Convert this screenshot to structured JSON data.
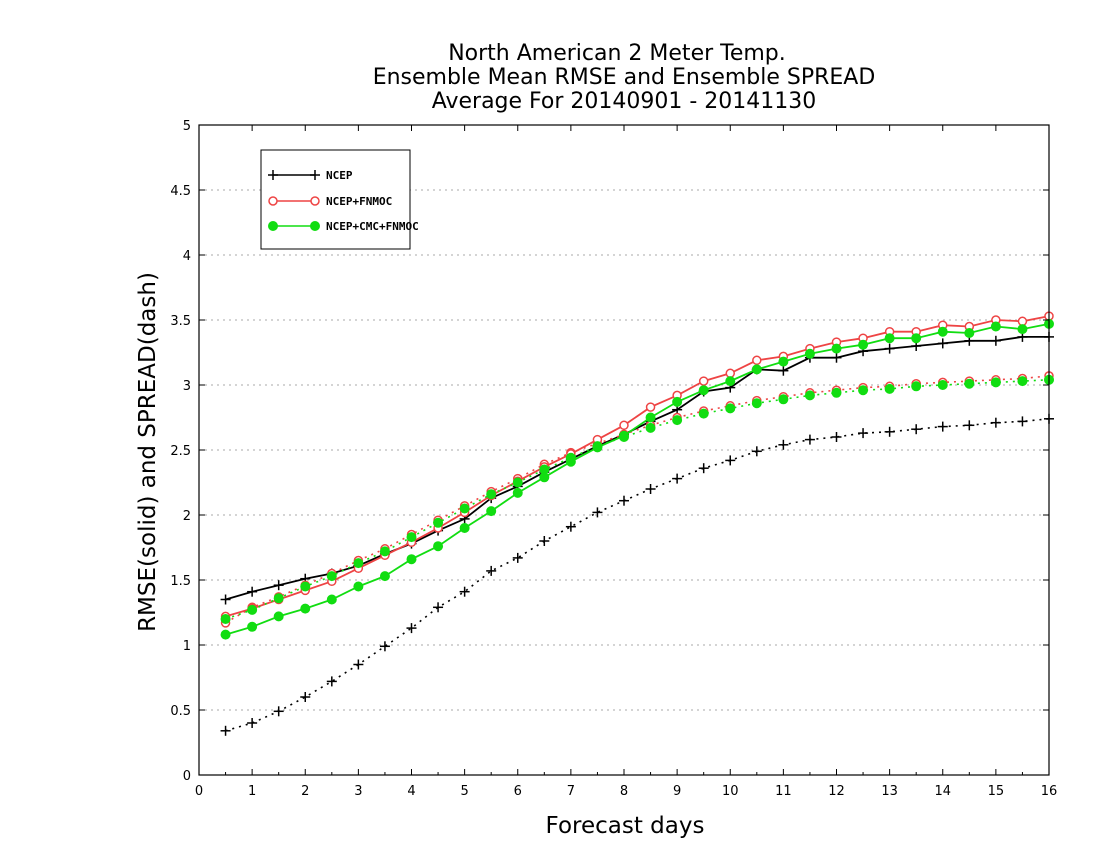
{
  "chart_data": {
    "type": "line",
    "title": [
      "North American 2 Meter Temp.",
      "Ensemble Mean RMSE and Ensemble SPREAD",
      "Average For 20140901 - 20141130"
    ],
    "xlabel": "Forecast days",
    "ylabel": "RMSE(solid) and SPREAD(dash)",
    "xlim": [
      0,
      16
    ],
    "ylim": [
      0,
      5
    ],
    "xticks": [
      0,
      1,
      2,
      3,
      4,
      5,
      6,
      7,
      8,
      9,
      10,
      11,
      12,
      13,
      14,
      15,
      16
    ],
    "yticks": [
      0,
      0.5,
      1,
      1.5,
      2,
      2.5,
      3,
      3.5,
      4,
      4.5,
      5
    ],
    "ytick_labels": [
      "0",
      "0.5",
      "1",
      "1.5",
      "2",
      "2.5",
      "3",
      "3.5",
      "4",
      "4.5",
      "5"
    ],
    "grid": "horizontal-dotted",
    "legend_position": "top-left",
    "x": [
      0.5,
      1,
      1.5,
      2,
      2.5,
      3,
      3.5,
      4,
      4.5,
      5,
      5.5,
      6,
      6.5,
      7,
      7.5,
      8,
      8.5,
      9,
      9.5,
      10,
      10.5,
      11,
      11.5,
      12,
      12.5,
      13,
      13.5,
      14,
      14.5,
      15,
      15.5,
      16
    ],
    "series": [
      {
        "name": "NCEP",
        "color": "#000000",
        "marker": "plus",
        "rmse": [
          1.35,
          1.41,
          1.46,
          1.51,
          1.55,
          1.61,
          1.7,
          1.78,
          1.88,
          1.97,
          2.13,
          2.22,
          2.33,
          2.43,
          2.53,
          2.62,
          2.72,
          2.81,
          2.95,
          2.98,
          3.12,
          3.11,
          3.21,
          3.21,
          3.26,
          3.28,
          3.3,
          3.32,
          3.34,
          3.34,
          3.37,
          3.37
        ],
        "spread": [
          0.34,
          0.4,
          0.49,
          0.6,
          0.72,
          0.85,
          0.99,
          1.13,
          1.29,
          1.41,
          1.57,
          1.67,
          1.8,
          1.91,
          2.02,
          2.11,
          2.2,
          2.28,
          2.36,
          2.42,
          2.49,
          2.54,
          2.58,
          2.6,
          2.63,
          2.64,
          2.66,
          2.68,
          2.69,
          2.71,
          2.72,
          2.74
        ]
      },
      {
        "name": "NCEP+FNMOC",
        "color": "#ee4444",
        "marker": "open-circle",
        "rmse": [
          1.22,
          1.28,
          1.35,
          1.42,
          1.49,
          1.59,
          1.69,
          1.79,
          1.9,
          2.02,
          2.15,
          2.26,
          2.37,
          2.47,
          2.58,
          2.69,
          2.83,
          2.92,
          3.03,
          3.09,
          3.19,
          3.22,
          3.28,
          3.33,
          3.36,
          3.41,
          3.41,
          3.46,
          3.45,
          3.5,
          3.49,
          3.53
        ],
        "spread": [
          1.17,
          1.29,
          1.37,
          1.46,
          1.55,
          1.65,
          1.74,
          1.85,
          1.96,
          2.07,
          2.18,
          2.28,
          2.39,
          2.48,
          2.55,
          2.62,
          2.69,
          2.75,
          2.8,
          2.84,
          2.88,
          2.91,
          2.94,
          2.96,
          2.98,
          2.99,
          3.01,
          3.02,
          3.03,
          3.04,
          3.05,
          3.07
        ]
      },
      {
        "name": "NCEP+CMC+FNMOC",
        "color": "#11dd11",
        "marker": "filled-circle",
        "rmse": [
          1.08,
          1.14,
          1.22,
          1.28,
          1.35,
          1.45,
          1.53,
          1.66,
          1.76,
          1.9,
          2.03,
          2.17,
          2.29,
          2.41,
          2.52,
          2.61,
          2.75,
          2.87,
          2.96,
          3.03,
          3.12,
          3.18,
          3.24,
          3.28,
          3.31,
          3.36,
          3.36,
          3.41,
          3.4,
          3.45,
          3.43,
          3.47
        ],
        "spread": [
          1.2,
          1.27,
          1.36,
          1.45,
          1.53,
          1.63,
          1.72,
          1.83,
          1.94,
          2.05,
          2.16,
          2.25,
          2.35,
          2.44,
          2.53,
          2.6,
          2.67,
          2.73,
          2.78,
          2.82,
          2.86,
          2.89,
          2.92,
          2.94,
          2.96,
          2.97,
          2.99,
          3.0,
          3.01,
          3.02,
          3.03,
          3.04
        ]
      }
    ]
  }
}
